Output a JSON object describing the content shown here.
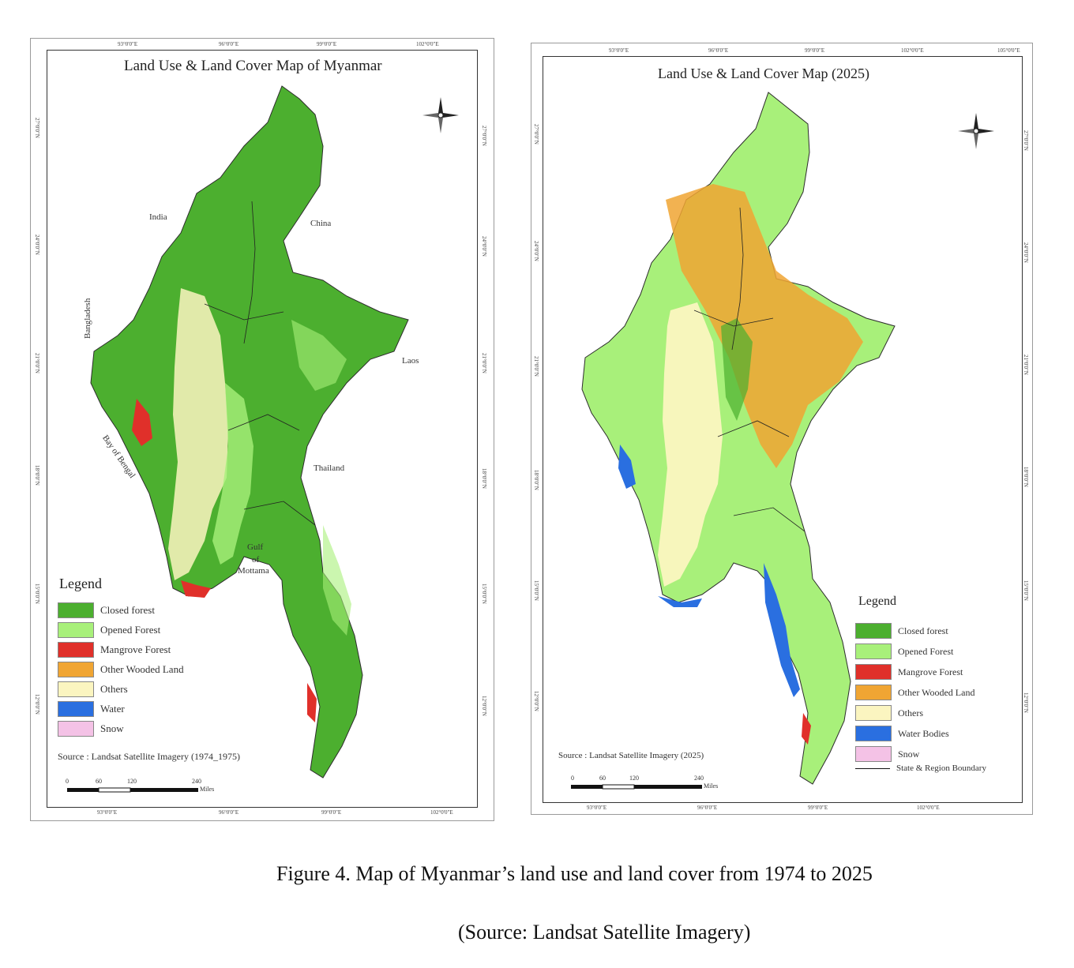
{
  "colors": {
    "closed_forest": "#4caf2f",
    "opened_forest": "#a8f07a",
    "mangrove": "#e0302a",
    "other_wooded": "#f0a533",
    "others": "#fbf5c0",
    "water": "#2a6fe0",
    "snow": "#f4c2e6"
  },
  "left_map": {
    "title": "Land Use & Land Cover Map of Myanmar",
    "top_coords": [
      "93°0'0\"E",
      "96°0'0\"E",
      "99°0'0\"E",
      "102°0'0\"E"
    ],
    "bottom_coords": [
      "93°0'0\"E",
      "96°0'0\"E",
      "99°0'0\"E",
      "102°0'0\"E"
    ],
    "left_coords": [
      "27°0'0\"N",
      "24°0'0\"N",
      "21°0'0\"N",
      "18°0'0\"N",
      "15°0'0\"N",
      "12°0'0\"N"
    ],
    "labels": {
      "india": "India",
      "china": "China",
      "bangladesh": "Bangladesh",
      "laos": "Laos",
      "bay": "Bay of Bengal",
      "thailand": "Thailand",
      "gulf1": "Gulf",
      "gulf2": "of",
      "gulf3": "Mottama"
    },
    "legend_title": "Legend",
    "legend": [
      "Closed forest",
      "Opened Forest",
      "Mangrove Forest",
      "Other Wooded Land",
      "Others",
      "Water",
      "Snow"
    ],
    "source": "Source : Landsat Satellite Imagery (1974_1975)",
    "scale": [
      "0",
      "60",
      "120",
      "240"
    ],
    "scale_unit": "Miles"
  },
  "right_map": {
    "title": "Land Use & Land Cover Map (2025)",
    "top_coords": [
      "93°0'0\"E",
      "96°0'0\"E",
      "99°0'0\"E",
      "102°0'0\"E",
      "105°0'0\"E"
    ],
    "bottom_coords": [
      "93°0'0\"E",
      "96°0'0\"E",
      "99°0'0\"E",
      "102°0'0\"E"
    ],
    "left_coords": [
      "27°0'0\"N",
      "24°0'0\"N",
      "21°0'0\"N",
      "18°0'0\"N",
      "15°0'0\"N",
      "12°0'0\"N"
    ],
    "legend_title": "Legend",
    "legend": [
      "Closed forest",
      "Opened Forest",
      "Mangrove Forest",
      "Other Wooded Land",
      "Others",
      "Water Bodies",
      "Snow"
    ],
    "boundary_label": "State & Region Boundary",
    "source": "Source : Landsat Satellite Imagery (2025)",
    "scale": [
      "0",
      "60",
      "120",
      "240"
    ],
    "scale_unit": "Miles"
  },
  "caption": {
    "line1": "Figure 4. Map of Myanmar’s land use and land cover from 1974 to 2025",
    "line2": "(Source: Landsat Satellite Imagery)"
  }
}
